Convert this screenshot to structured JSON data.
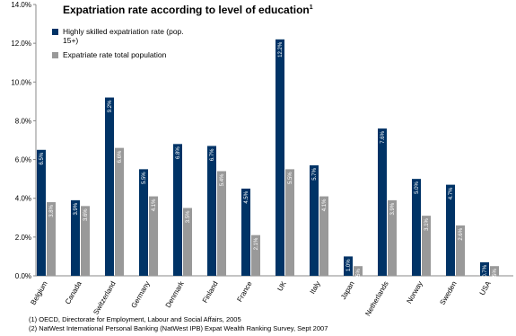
{
  "chart_data": {
    "type": "bar",
    "title": "Expatriation rate according to level of education",
    "title_note": "1",
    "categories": [
      "Belgium",
      "Canada",
      "Switzerland",
      "Germany",
      "Denmark",
      "Finland",
      "France",
      "UK",
      "Italy",
      "Japan",
      "Netherlands",
      "Norway",
      "Sweden",
      "USA"
    ],
    "series": [
      {
        "name": "Highly skilled expatriation rate (pop. 15+)",
        "color": "#003366",
        "values": [
          6.5,
          3.9,
          9.2,
          5.5,
          6.8,
          6.7,
          4.5,
          12.2,
          5.7,
          1.0,
          7.6,
          5.0,
          4.7,
          0.7
        ],
        "value_labels": [
          "6.5%",
          "3.9%",
          "9.2%",
          "5.5%",
          "6.8%",
          "6.7%",
          "4.5%",
          "12.2%",
          "5.7%",
          "1.0%",
          "7.6%",
          "5.0%",
          "4.7%",
          "0.7%"
        ]
      },
      {
        "name": "Expatriate rate total population",
        "color": "#999999",
        "values": [
          3.8,
          3.6,
          6.6,
          4.1,
          3.5,
          5.4,
          2.1,
          5.5,
          4.1,
          0.5,
          3.9,
          3.1,
          2.6,
          0.5
        ],
        "value_labels": [
          "3.8%",
          "3.6%",
          "6.6%",
          "4.1%",
          "3.5%",
          "5.4%",
          "2.1%",
          "5.5%",
          "4.1%",
          "0.5%",
          "3.9%",
          "3.1%",
          "2.6%",
          "0.5%"
        ]
      }
    ],
    "ylim": [
      0,
      14
    ],
    "yticks": [
      {
        "value": 0,
        "label": "0.0%"
      },
      {
        "value": 2,
        "label": "2.0%"
      },
      {
        "value": 4,
        "label": "4.0%"
      },
      {
        "value": 6,
        "label": "6.0%"
      },
      {
        "value": 8,
        "label": "8.0%"
      },
      {
        "value": 10,
        "label": "10.0%"
      },
      {
        "value": 12,
        "label": "12.0%"
      },
      {
        "value": 14,
        "label": "14.0%"
      }
    ],
    "grid": false,
    "footnotes": [
      "(1) OECD, Directorate for Employment, Labour and Social Affairs, 2005",
      "(2) NatWest International Personal Banking (NatWest IPB) Expat Wealth Ranking Survey, Sept 2007"
    ]
  }
}
